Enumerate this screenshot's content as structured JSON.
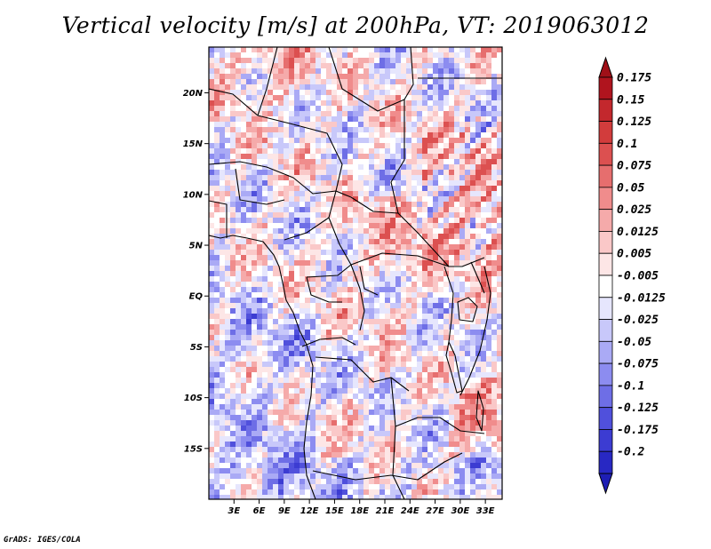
{
  "title": "Vertical velocity [m/s] at 200hPa, VT: 2019063012",
  "credit": "GrADS: IGES/COLA",
  "map": {
    "lon_range": [
      0,
      35
    ],
    "lat_range": [
      -20,
      24.5
    ],
    "lat_ticks": [
      {
        "value": 20,
        "label": "20N"
      },
      {
        "value": 15,
        "label": "15N"
      },
      {
        "value": 10,
        "label": "10N"
      },
      {
        "value": 5,
        "label": "5N"
      },
      {
        "value": 0,
        "label": "EQ"
      },
      {
        "value": -5,
        "label": "5S"
      },
      {
        "value": -10,
        "label": "10S"
      },
      {
        "value": -15,
        "label": "15S"
      }
    ],
    "lon_ticks": [
      {
        "value": 3,
        "label": "3E"
      },
      {
        "value": 6,
        "label": "6E"
      },
      {
        "value": 9,
        "label": "9E"
      },
      {
        "value": 12,
        "label": "12E"
      },
      {
        "value": 15,
        "label": "15E"
      },
      {
        "value": 18,
        "label": "18E"
      },
      {
        "value": 21,
        "label": "21E"
      },
      {
        "value": 24,
        "label": "24E"
      },
      {
        "value": 27,
        "label": "27E"
      },
      {
        "value": 30,
        "label": "30E"
      },
      {
        "value": 33,
        "label": "33E"
      }
    ]
  },
  "colorbar": {
    "levels": [
      {
        "label": "0.175",
        "color": "#b0141e"
      },
      {
        "label": "0.15",
        "color": "#c3282d"
      },
      {
        "label": "0.125",
        "color": "#d23c3c"
      },
      {
        "label": "0.1",
        "color": "#dc5050"
      },
      {
        "label": "0.075",
        "color": "#e66e6e"
      },
      {
        "label": "0.05",
        "color": "#f08c8c"
      },
      {
        "label": "0.025",
        "color": "#f5aaaa"
      },
      {
        "label": "0.0125",
        "color": "#fac8c8"
      },
      {
        "label": "0.005",
        "color": "#fde6e6"
      },
      {
        "label": "-0.005",
        "color": "#ffffff"
      },
      {
        "label": "-0.0125",
        "color": "#e6e6fd"
      },
      {
        "label": "-0.025",
        "color": "#c8c8fa"
      },
      {
        "label": "-0.05",
        "color": "#aaaaf5"
      },
      {
        "label": "-0.075",
        "color": "#8c8cf0"
      },
      {
        "label": "-0.1",
        "color": "#6e6ee6"
      },
      {
        "label": "-0.125",
        "color": "#5050dc"
      },
      {
        "label": "-0.175",
        "color": "#3c3cd2"
      },
      {
        "label": "-0.2",
        "color": "#2828c3"
      }
    ],
    "top_color": "#a01018",
    "bottom_color": "#1e1eb4"
  }
}
